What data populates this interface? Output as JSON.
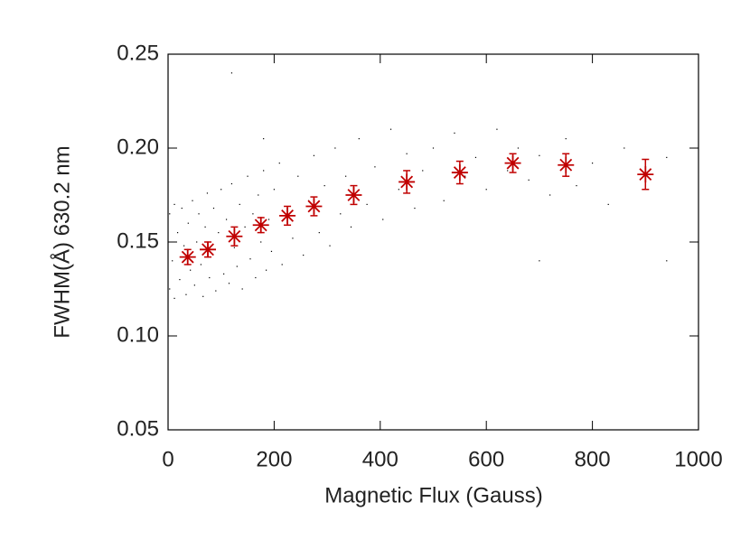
{
  "chart_data": {
    "type": "scatter",
    "xlabel": "Magnetic Flux (Gauss)",
    "ylabel": "FWHM(Å)  630.2 nm",
    "xlim": [
      0,
      1000
    ],
    "xticks": [
      0,
      200,
      400,
      600,
      800,
      1000
    ],
    "ylim": [
      0.05,
      0.25
    ],
    "yticks": [
      0.05,
      {
        "value": 0.1,
        "label": "0.10"
      },
      0.15,
      {
        "value": 0.2,
        "label": "0.20"
      },
      0.25
    ],
    "series": [
      {
        "color": "#000000",
        "x": [
          3,
          3,
          8,
          12,
          12,
          18,
          22,
          26,
          30,
          34,
          38,
          42,
          46,
          50,
          54,
          58,
          62,
          66,
          70,
          74,
          78,
          82,
          86,
          90,
          95,
          100,
          105,
          110,
          115,
          120,
          125,
          130,
          135,
          140,
          145,
          150,
          155,
          160,
          165,
          170,
          175,
          180,
          185,
          190,
          195,
          200,
          210,
          215,
          225,
          235,
          245,
          255,
          265,
          275,
          285,
          295,
          305,
          315,
          325,
          335,
          345,
          360,
          375,
          390,
          405,
          420,
          435,
          450,
          465,
          480,
          500,
          520,
          540,
          560,
          580,
          600,
          620,
          640,
          660,
          680,
          700,
          720,
          750,
          770,
          800,
          830,
          860,
          900,
          940,
          120,
          180,
          700,
          940
        ],
        "y": [
          0.125,
          0.165,
          0.14,
          0.12,
          0.17,
          0.155,
          0.13,
          0.168,
          0.148,
          0.122,
          0.16,
          0.135,
          0.172,
          0.127,
          0.15,
          0.165,
          0.138,
          0.121,
          0.158,
          0.176,
          0.131,
          0.146,
          0.168,
          0.124,
          0.155,
          0.178,
          0.133,
          0.162,
          0.128,
          0.181,
          0.147,
          0.137,
          0.17,
          0.125,
          0.158,
          0.185,
          0.141,
          0.165,
          0.131,
          0.175,
          0.15,
          0.188,
          0.135,
          0.162,
          0.145,
          0.178,
          0.192,
          0.138,
          0.168,
          0.152,
          0.185,
          0.143,
          0.172,
          0.196,
          0.155,
          0.18,
          0.148,
          0.2,
          0.165,
          0.185,
          0.158,
          0.205,
          0.17,
          0.19,
          0.162,
          0.21,
          0.178,
          0.197,
          0.168,
          0.188,
          0.2,
          0.172,
          0.208,
          0.185,
          0.195,
          0.178,
          0.21,
          0.188,
          0.2,
          0.183,
          0.196,
          0.175,
          0.205,
          0.18,
          0.192,
          0.17,
          0.2,
          0.178,
          0.195,
          0.24,
          0.205,
          0.14,
          0.14
        ]
      },
      {
        "color": "#c00000",
        "x": [
          37,
          75,
          125,
          175,
          225,
          275,
          350,
          450,
          550,
          650,
          750,
          900
        ],
        "y": [
          0.142,
          0.146,
          0.153,
          0.159,
          0.164,
          0.169,
          0.175,
          0.182,
          0.187,
          0.192,
          0.191,
          0.186
        ],
        "errors": [
          0.004,
          0.004,
          0.005,
          0.004,
          0.005,
          0.005,
          0.005,
          0.006,
          0.006,
          0.005,
          0.006,
          0.008
        ]
      }
    ]
  }
}
